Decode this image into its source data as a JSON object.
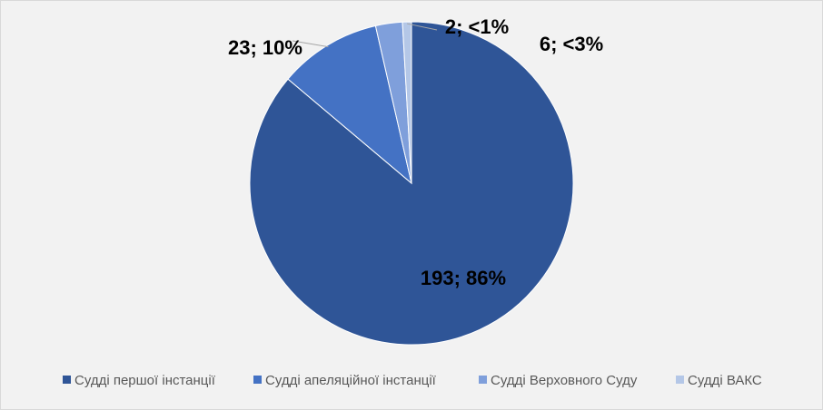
{
  "chart_data": {
    "type": "pie",
    "title": "",
    "legend_position": "bottom",
    "start_angle_deg": 0,
    "direction": "clockwise",
    "series": [
      {
        "categories": [
          "Судді першої інстанції",
          "Судді апеляційної інстанції",
          "Судді Верховного Суду",
          "Судді ВАКС"
        ],
        "values": [
          193,
          23,
          6,
          2
        ],
        "percent_labels": [
          "86%",
          "10%",
          "<3%",
          "<1%"
        ],
        "data_labels": [
          "193; 86%",
          "23; 10%",
          "6; <3%",
          "2; <1%"
        ],
        "colors": [
          "#2f5597",
          "#4472c4",
          "#7f9fdb",
          "#b4c7e7"
        ]
      }
    ]
  }
}
